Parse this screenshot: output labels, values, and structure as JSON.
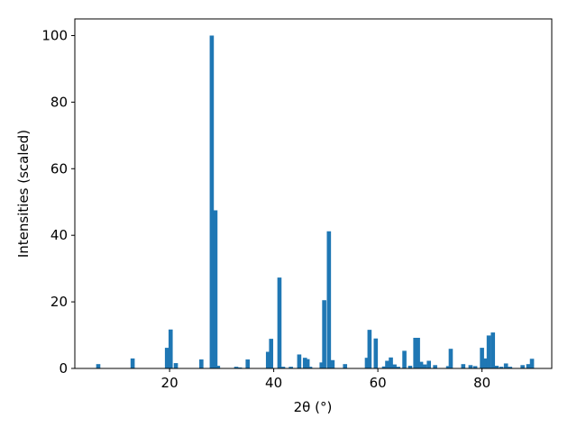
{
  "chart_data": {
    "type": "bar",
    "x_label": "2θ (°)",
    "y_label": "Intensities (scaled)",
    "color": "#1f77b4",
    "x": [
      6.3,
      12.9,
      19.5,
      20.2,
      21.2,
      26.1,
      28.1,
      28.8,
      29.3,
      32.8,
      33.5,
      35.0,
      38.9,
      39.5,
      41.1,
      41.8,
      43.3,
      44.9,
      46.0,
      46.5,
      47.0,
      49.2,
      49.7,
      50.6,
      51.3,
      53.7,
      57.9,
      58.4,
      59.6,
      61.2,
      61.8,
      62.5,
      63.2,
      63.9,
      65.1,
      66.2,
      67.2,
      67.7,
      68.3,
      69.0,
      69.8,
      71.0,
      73.5,
      74.0,
      76.4,
      77.8,
      78.7,
      80.0,
      80.7,
      81.3,
      82.1,
      82.8,
      83.7,
      84.6,
      85.4,
      87.8,
      88.9,
      89.6
    ],
    "values": [
      1.3,
      3,
      6.2,
      11.7,
      1.6,
      2.7,
      100,
      47.5,
      0.8,
      0.5,
      0.3,
      2.7,
      5,
      8.9,
      27.3,
      0.5,
      0.5,
      4.2,
      3.2,
      2.8,
      0.5,
      1.8,
      20.5,
      41.2,
      2.5,
      1.3,
      3.2,
      11.6,
      9,
      0.6,
      2.3,
      3.3,
      1.2,
      0.5,
      5.3,
      0.8,
      9.2,
      9.2,
      2,
      1.2,
      2.3,
      1,
      0.7,
      5.9,
      1.3,
      1,
      0.7,
      6.2,
      3,
      9.9,
      10.8,
      0.8,
      0.5,
      1.5,
      0.5,
      1,
      1.3,
      2.9
    ],
    "xlim": [
      1.8,
      93.4
    ],
    "ylim": [
      0,
      105
    ],
    "xticks": [
      20,
      40,
      60,
      80
    ],
    "yticks": [
      0,
      20,
      40,
      60,
      80,
      100
    ]
  }
}
